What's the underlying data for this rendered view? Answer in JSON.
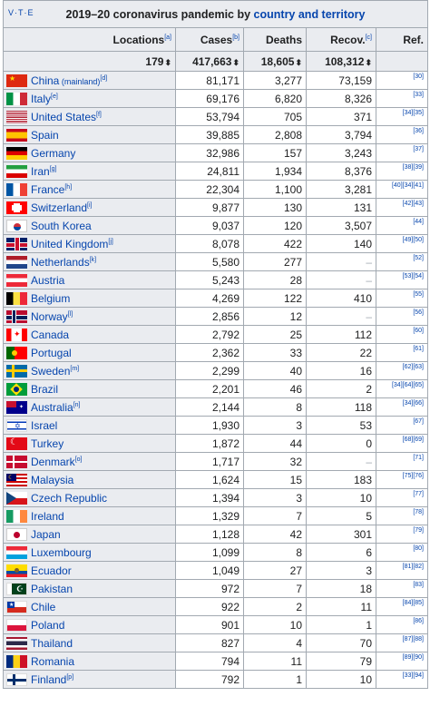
{
  "header": {
    "vte": "V·T·E",
    "title_prefix": "2019–20 coronavirus pandemic by ",
    "title_link": "country and territory"
  },
  "columns": {
    "locations": "Locations",
    "locations_note": "[a]",
    "cases": "Cases",
    "cases_note": "[b]",
    "deaths": "Deaths",
    "recov": "Recov.",
    "recov_note": "[c]",
    "ref": "Ref."
  },
  "totals": {
    "locations": "179",
    "cases": "417,663",
    "deaths": "18,605",
    "recov": "108,312"
  },
  "sort_icon": "sort-arrows-icon",
  "rows": [
    {
      "name": "China",
      "extra": " (mainland)",
      "note": "[d]",
      "cases": "81,171",
      "deaths": "3,277",
      "recov": "73,159",
      "ref": "[30]",
      "flag": "china"
    },
    {
      "name": "Italy",
      "note": "[e]",
      "cases": "69,176",
      "deaths": "6,820",
      "recov": "8,326",
      "ref": "[33]",
      "flag": "italy"
    },
    {
      "name": "United States",
      "note": "[f]",
      "cases": "53,794",
      "deaths": "705",
      "recov": "371",
      "ref": "[34][35]",
      "flag": "usa"
    },
    {
      "name": "Spain",
      "cases": "39,885",
      "deaths": "2,808",
      "recov": "3,794",
      "ref": "[36]",
      "flag": "spain"
    },
    {
      "name": "Germany",
      "cases": "32,986",
      "deaths": "157",
      "recov": "3,243",
      "ref": "[37]",
      "flag": "germany"
    },
    {
      "name": "Iran",
      "note": "[g]",
      "cases": "24,811",
      "deaths": "1,934",
      "recov": "8,376",
      "ref": "[38][39]",
      "flag": "iran"
    },
    {
      "name": "France",
      "note": "[h]",
      "cases": "22,304",
      "deaths": "1,100",
      "recov": "3,281",
      "ref": "[40][34][41]",
      "flag": "france"
    },
    {
      "name": "Switzerland",
      "note": "[i]",
      "cases": "9,877",
      "deaths": "130",
      "recov": "131",
      "ref": "[42][43]",
      "flag": "switzerland"
    },
    {
      "name": "South Korea",
      "cases": "9,037",
      "deaths": "120",
      "recov": "3,507",
      "ref": "[44]",
      "flag": "korea"
    },
    {
      "name": "United Kingdom",
      "note": "[j]",
      "cases": "8,078",
      "deaths": "422",
      "recov": "140",
      "ref": "[49][50]",
      "flag": "uk"
    },
    {
      "name": "Netherlands",
      "note": "[k]",
      "cases": "5,580",
      "deaths": "277",
      "recov": "–",
      "ref": "[52]",
      "flag": "netherlands"
    },
    {
      "name": "Austria",
      "cases": "5,243",
      "deaths": "28",
      "recov": "–",
      "ref": "[53][54]",
      "flag": "austria"
    },
    {
      "name": "Belgium",
      "cases": "4,269",
      "deaths": "122",
      "recov": "410",
      "ref": "[55]",
      "flag": "belgium"
    },
    {
      "name": "Norway",
      "note": "[l]",
      "cases": "2,856",
      "deaths": "12",
      "recov": "–",
      "ref": "[56]",
      "flag": "norway"
    },
    {
      "name": "Canada",
      "cases": "2,792",
      "deaths": "25",
      "recov": "112",
      "ref": "[60]",
      "flag": "canada"
    },
    {
      "name": "Portugal",
      "cases": "2,362",
      "deaths": "33",
      "recov": "22",
      "ref": "[61]",
      "flag": "portugal"
    },
    {
      "name": "Sweden",
      "note": "[m]",
      "cases": "2,299",
      "deaths": "40",
      "recov": "16",
      "ref": "[62][63]",
      "flag": "sweden"
    },
    {
      "name": "Brazil",
      "cases": "2,201",
      "deaths": "46",
      "recov": "2",
      "ref": "[34][64][65]",
      "flag": "brazil"
    },
    {
      "name": "Australia",
      "note": "[n]",
      "cases": "2,144",
      "deaths": "8",
      "recov": "118",
      "ref": "[34][66]",
      "flag": "australia"
    },
    {
      "name": "Israel",
      "cases": "1,930",
      "deaths": "3",
      "recov": "53",
      "ref": "[67]",
      "flag": "israel"
    },
    {
      "name": "Turkey",
      "cases": "1,872",
      "deaths": "44",
      "recov": "0",
      "ref": "[68][69]",
      "flag": "turkey"
    },
    {
      "name": "Denmark",
      "note": "[o]",
      "cases": "1,717",
      "deaths": "32",
      "recov": "–",
      "ref": "[71]",
      "flag": "denmark"
    },
    {
      "name": "Malaysia",
      "cases": "1,624",
      "deaths": "15",
      "recov": "183",
      "ref": "[75][76]",
      "flag": "malaysia"
    },
    {
      "name": "Czech Republic",
      "cases": "1,394",
      "deaths": "3",
      "recov": "10",
      "ref": "[77]",
      "flag": "czech"
    },
    {
      "name": "Ireland",
      "cases": "1,329",
      "deaths": "7",
      "recov": "5",
      "ref": "[78]",
      "flag": "ireland"
    },
    {
      "name": "Japan",
      "cases": "1,128",
      "deaths": "42",
      "recov": "301",
      "ref": "[79]",
      "flag": "japan"
    },
    {
      "name": "Luxembourg",
      "cases": "1,099",
      "deaths": "8",
      "recov": "6",
      "ref": "[80]",
      "flag": "luxembourg"
    },
    {
      "name": "Ecuador",
      "cases": "1,049",
      "deaths": "27",
      "recov": "3",
      "ref": "[81][82]",
      "flag": "ecuador"
    },
    {
      "name": "Pakistan",
      "cases": "972",
      "deaths": "7",
      "recov": "18",
      "ref": "[83]",
      "flag": "pakistan"
    },
    {
      "name": "Chile",
      "cases": "922",
      "deaths": "2",
      "recov": "11",
      "ref": "[84][85]",
      "flag": "chile"
    },
    {
      "name": "Poland",
      "cases": "901",
      "deaths": "10",
      "recov": "1",
      "ref": "[86]",
      "flag": "poland"
    },
    {
      "name": "Thailand",
      "cases": "827",
      "deaths": "4",
      "recov": "70",
      "ref": "[87][88]",
      "flag": "thailand"
    },
    {
      "name": "Romania",
      "cases": "794",
      "deaths": "11",
      "recov": "79",
      "ref": "[89][90]",
      "flag": "romania"
    },
    {
      "name": "Finland",
      "note": "[p]",
      "cases": "792",
      "deaths": "1",
      "recov": "10",
      "ref": "[33][94]",
      "flag": "finland"
    }
  ]
}
